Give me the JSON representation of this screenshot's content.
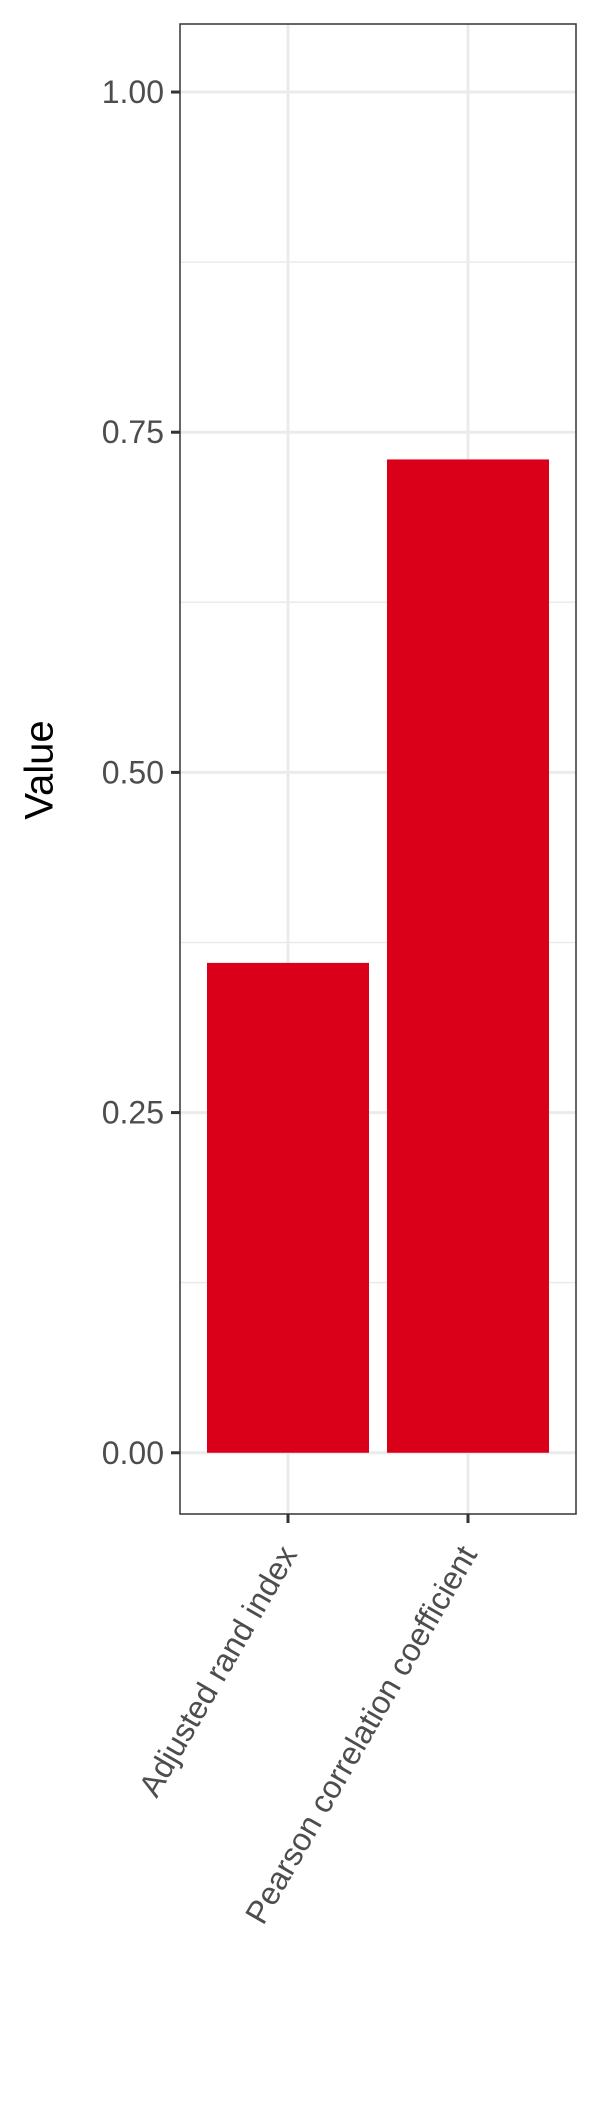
{
  "chart_data": {
    "type": "bar",
    "categories": [
      "Adjusted rand index",
      "Pearson correlation coefficient"
    ],
    "values": [
      0.36,
      0.73
    ],
    "title": "",
    "xlabel": "",
    "ylabel": "Value",
    "ylim": [
      -0.045,
      1.05
    ],
    "yticks": [
      0.0,
      0.25,
      0.5,
      0.75,
      1.0
    ],
    "ytick_labels": [
      "0.00",
      "0.25",
      "0.50",
      "0.75",
      "1.00"
    ],
    "grid": true,
    "legend": false,
    "colors": {
      "bar": "#DA001A",
      "grid": "#EBEBEB",
      "axis": "#333333",
      "text": "#4D4D4D",
      "background": "#FFFFFF"
    }
  }
}
